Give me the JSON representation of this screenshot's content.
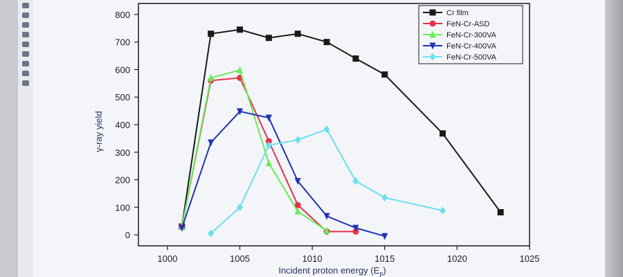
{
  "chart_data": {
    "type": "line",
    "xlabel": "Incident proton energy (E",
    "xlabel_sub": "p",
    "xlabel_close": ")",
    "ylabel": "γ-ray yield",
    "xlim": [
      998,
      1025
    ],
    "ylim": [
      -40,
      840
    ],
    "x_ticks": [
      1000,
      1005,
      1010,
      1015,
      1020,
      1025
    ],
    "y_ticks": [
      0,
      100,
      200,
      300,
      400,
      500,
      600,
      700,
      800
    ],
    "legend_position": "top-right",
    "series": [
      {
        "name": "Cr film",
        "color": "#1a1a1a",
        "marker": "square",
        "points": [
          [
            1001,
            30
          ],
          [
            1003,
            730
          ],
          [
            1005,
            745
          ],
          [
            1007,
            715
          ],
          [
            1009,
            730
          ],
          [
            1011,
            700
          ],
          [
            1013,
            640
          ],
          [
            1015,
            582
          ],
          [
            1019,
            368
          ],
          [
            1023,
            82
          ]
        ]
      },
      {
        "name": "FeN-Cr-ASD",
        "color": "#e8304a",
        "marker": "circle",
        "points": [
          [
            1001,
            30
          ],
          [
            1003,
            560
          ],
          [
            1005,
            570
          ],
          [
            1007,
            340
          ],
          [
            1009,
            108
          ],
          [
            1011,
            12
          ],
          [
            1013,
            12
          ]
        ]
      },
      {
        "name": "FeN-Cr-300VA",
        "color": "#66ee55",
        "marker": "triangle-up",
        "points": [
          [
            1001,
            30
          ],
          [
            1003,
            570
          ],
          [
            1005,
            598
          ],
          [
            1007,
            260
          ],
          [
            1009,
            85
          ],
          [
            1011,
            15
          ]
        ]
      },
      {
        "name": "FeN-Cr-400VA",
        "color": "#2233bb",
        "marker": "triangle-down",
        "points": [
          [
            1001,
            25
          ],
          [
            1003,
            335
          ],
          [
            1005,
            448
          ],
          [
            1007,
            425
          ],
          [
            1009,
            195
          ],
          [
            1011,
            68
          ],
          [
            1013,
            25
          ],
          [
            1015,
            -5
          ]
        ]
      },
      {
        "name": "FeN-Cr-500VA",
        "color": "#6de0ee",
        "marker": "diamond",
        "points": [
          [
            1003,
            5
          ],
          [
            1005,
            100
          ],
          [
            1007,
            325
          ],
          [
            1009,
            345
          ],
          [
            1011,
            383
          ],
          [
            1013,
            195
          ],
          [
            1015,
            135
          ],
          [
            1019,
            88
          ]
        ]
      }
    ]
  }
}
